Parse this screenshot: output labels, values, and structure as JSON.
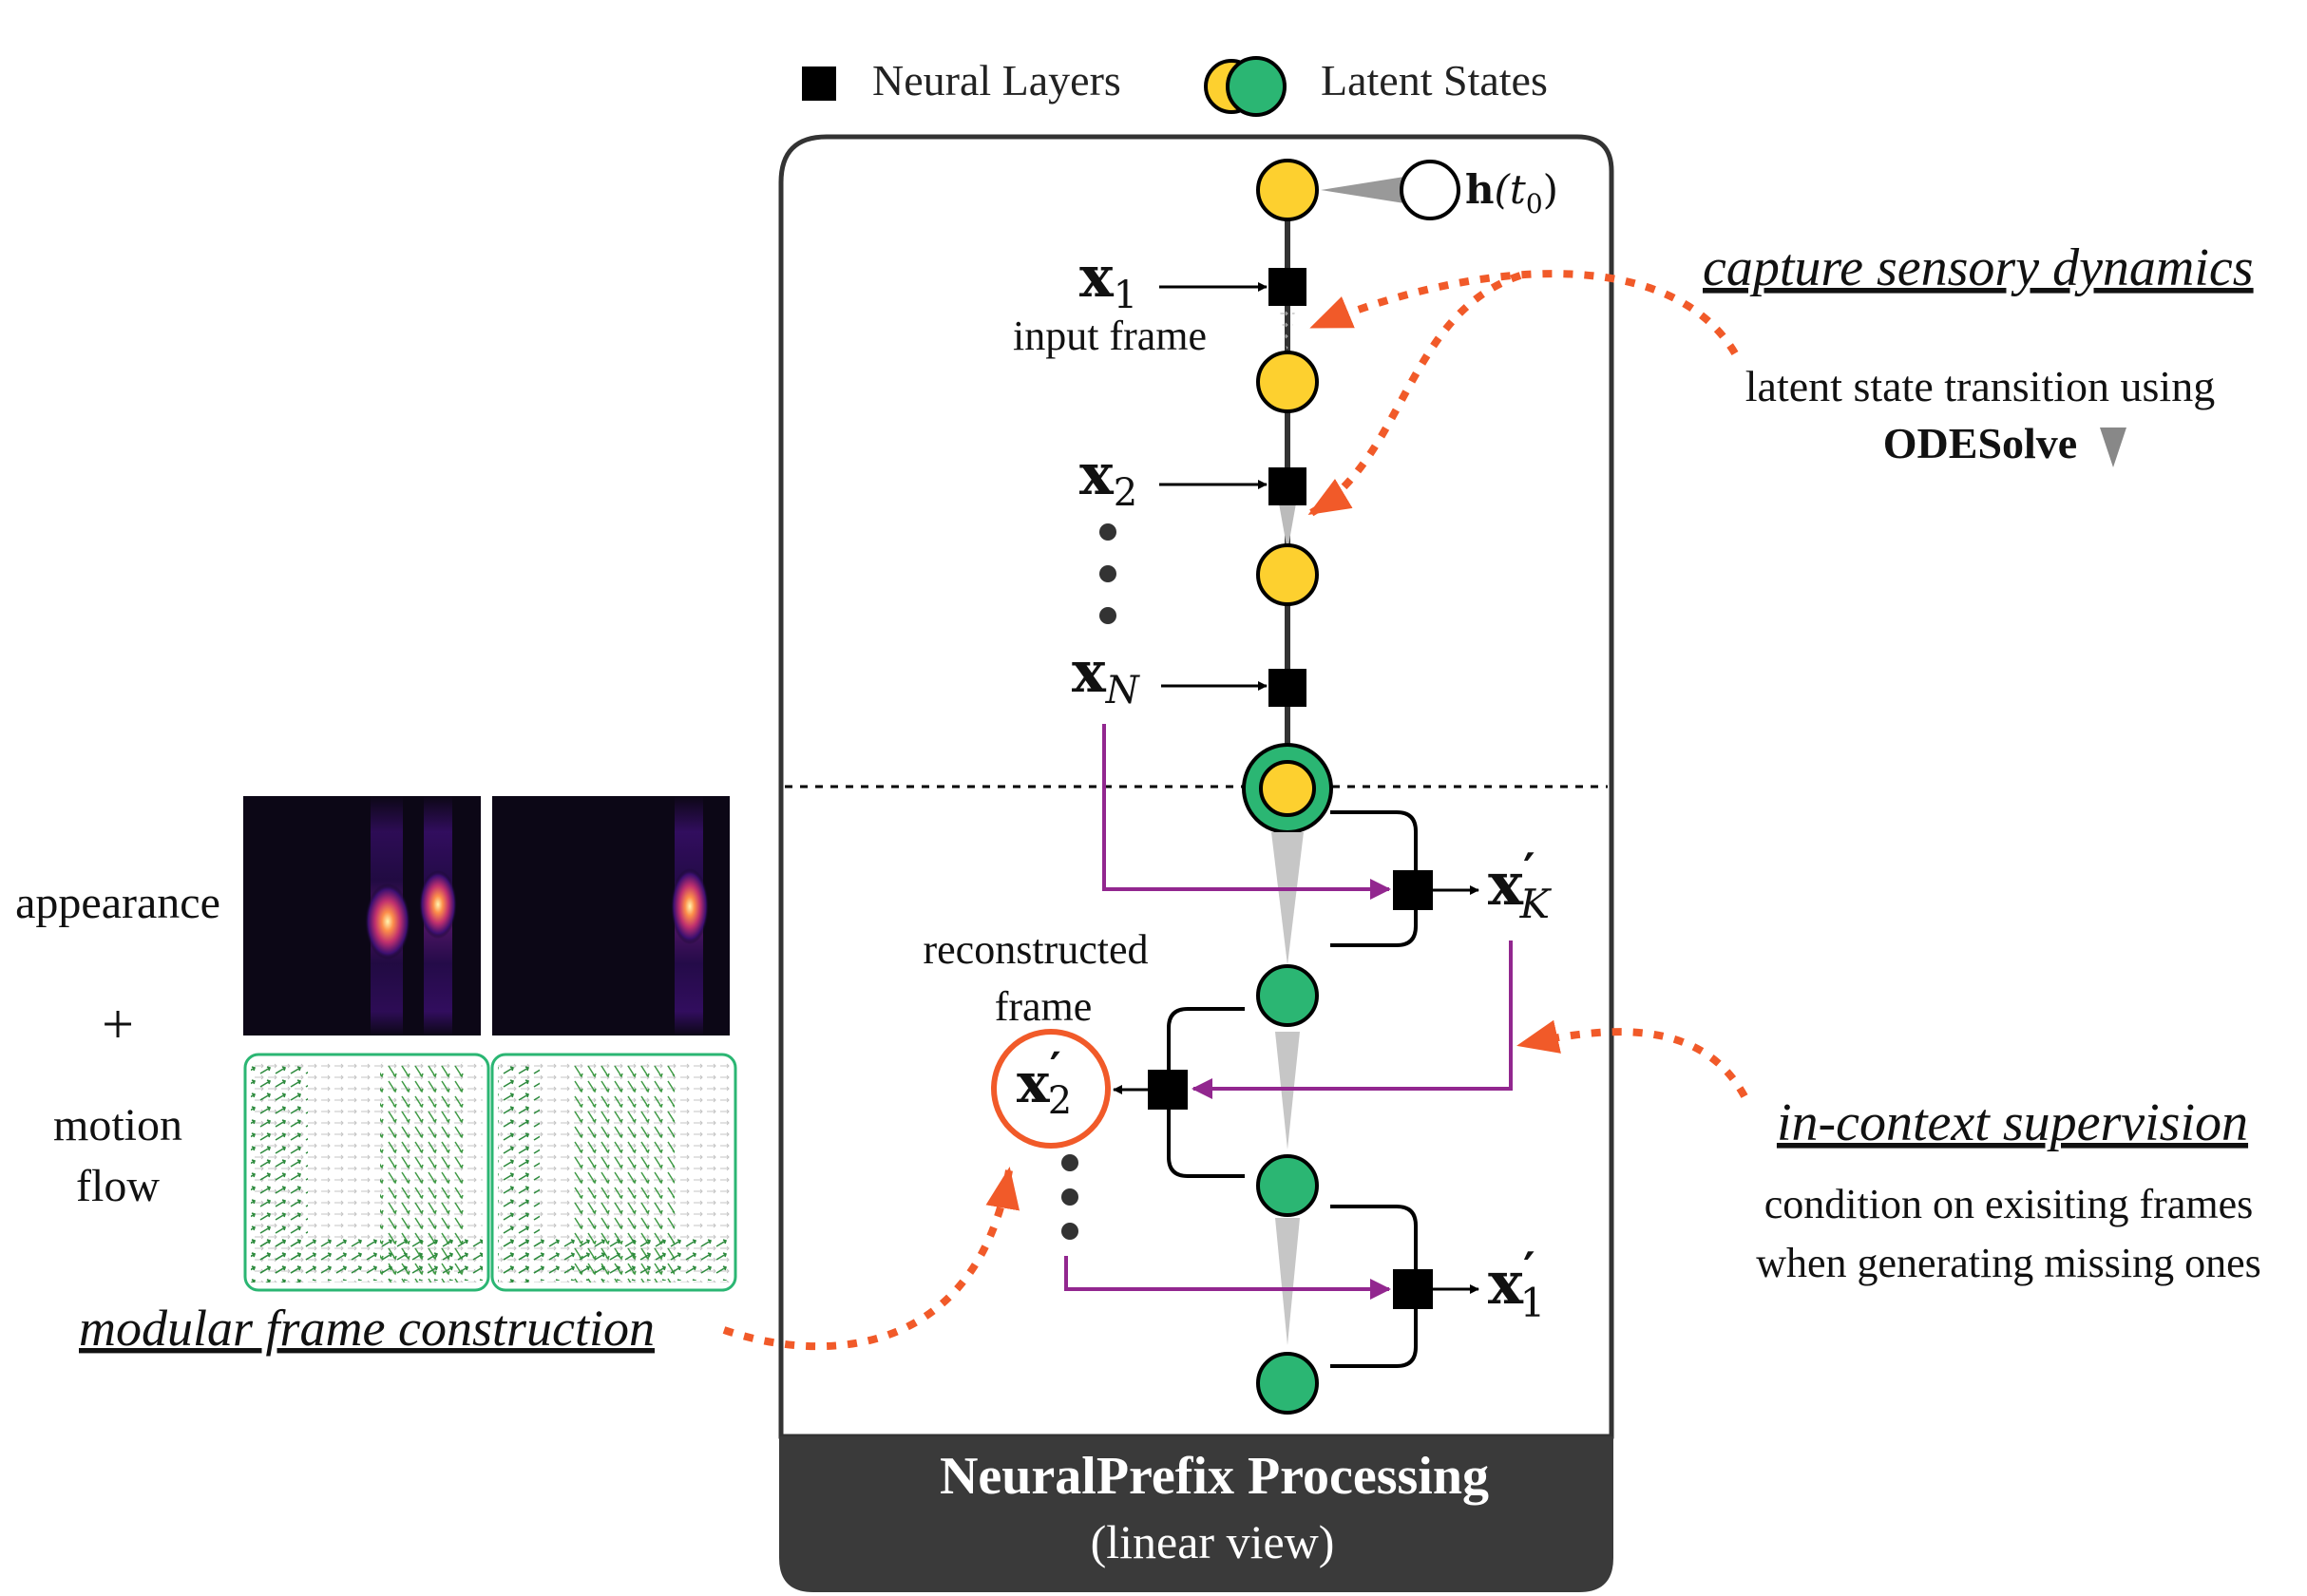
{
  "legend": {
    "neural_layers": "Neural Layers",
    "latent_states": "Latent States"
  },
  "panel": {
    "title": "NeuralPrefix Processing",
    "subtitle": "(linear view)"
  },
  "initial_state": {
    "bold": "h",
    "rest": "(t",
    "sub": "0",
    "close": ")"
  },
  "inputs": {
    "x1": {
      "base": "x",
      "sub": "1"
    },
    "x1_label": "input frame",
    "x2": {
      "base": "x",
      "sub": "2"
    },
    "xN": {
      "base": "x",
      "sub": "N"
    }
  },
  "outputs": {
    "xK": {
      "base": "x",
      "prime": "′",
      "sub": "K"
    },
    "x1": {
      "base": "x",
      "prime": "′",
      "sub": "1"
    },
    "x2": {
      "base": "x",
      "prime": "′",
      "sub": "2"
    },
    "recon_line1": "reconstructed",
    "recon_line2": "frame"
  },
  "annotations": {
    "capture_title": "capture sensory dynamics",
    "capture_line1": "latent state transition using",
    "capture_line2": "ODESolve",
    "icl_title": "in-context supervision",
    "icl_line1": "condition on exisiting frames",
    "icl_line2": "when generating missing ones",
    "modular_title": "modular frame construction"
  },
  "left_panel": {
    "appearance": "appearance",
    "plus": "+",
    "motion": "motion",
    "flow": "flow"
  },
  "colors": {
    "yellow_state": "#FDD02F",
    "green_state": "#2BB673",
    "orange_arrow": "#F15A29",
    "purple_line": "#92278F",
    "panel_footer": "#3A3A3A",
    "flow_green": "#2E8B3E"
  }
}
